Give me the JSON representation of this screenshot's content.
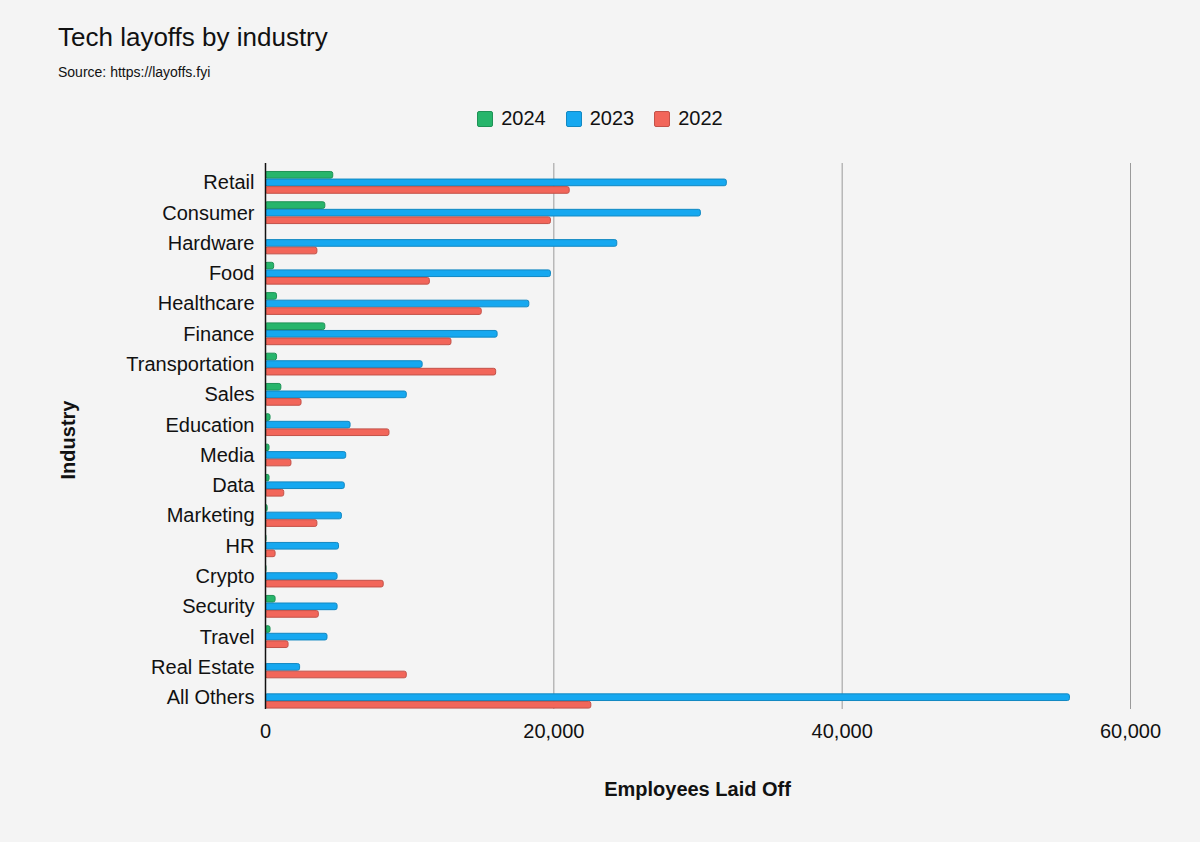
{
  "chart_data": {
    "type": "bar",
    "title": "Tech layoffs by industry",
    "subtitle": "Source: https://layoffs.fyi",
    "x_label": "Employees Laid Off",
    "y_label": "Industry",
    "orientation": "horizontal",
    "grid": true,
    "legend": "top",
    "categories": [
      "Retail",
      "Consumer",
      "Hardware",
      "Food",
      "Healthcare",
      "Finance",
      "Transportation",
      "Sales",
      "Education",
      "Media",
      "Data",
      "Marketing",
      "HR",
      "Crypto",
      "Security",
      "Travel",
      "Real Estate",
      "All Others"
    ],
    "series": [
      {
        "name": "2024",
        "color": "#27b56b",
        "values": [
          4700,
          4150,
          0,
          600,
          800,
          4150,
          800,
          1100,
          350,
          280,
          280,
          150,
          70,
          70,
          700,
          350,
          0,
          0
        ]
      },
      {
        "name": "2023",
        "color": "#16a8f0",
        "values": [
          32000,
          30200,
          24400,
          19800,
          18300,
          16100,
          10900,
          9800,
          5900,
          5600,
          5500,
          5300,
          5100,
          5000,
          5000,
          4300,
          2400,
          55800
        ]
      },
      {
        "name": "2022",
        "color": "#f2665a",
        "values": [
          21100,
          19800,
          3600,
          11400,
          15000,
          12900,
          16000,
          2500,
          8600,
          1800,
          1300,
          3600,
          700,
          8200,
          3700,
          1600,
          9800,
          22600
        ]
      }
    ],
    "xlim": [
      0,
      60000
    ],
    "xticks": [
      0,
      {
        "value": 20000,
        "label": "20,000"
      },
      {
        "value": 40000,
        "label": "40,000"
      },
      {
        "value": 60000,
        "label": "60,000"
      }
    ]
  }
}
